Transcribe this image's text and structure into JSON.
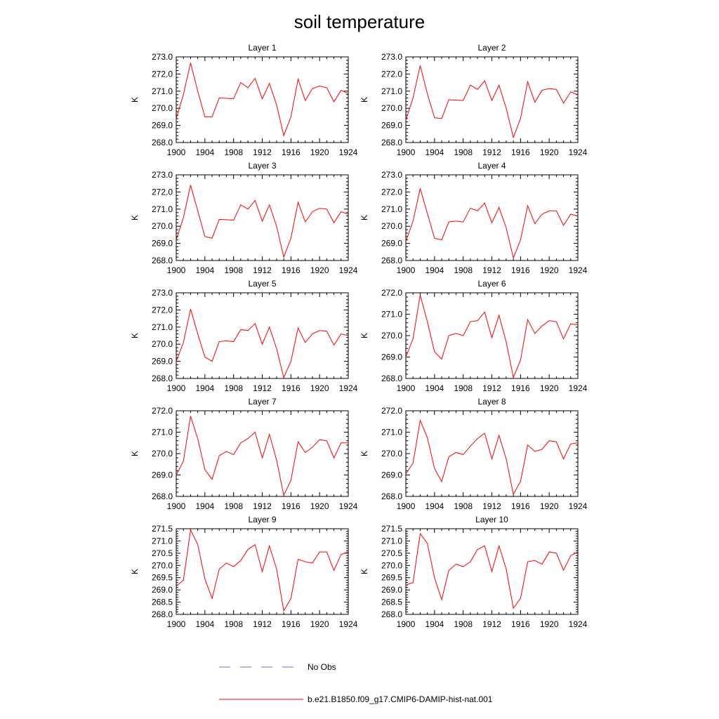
{
  "title": "soil temperature",
  "legend": [
    {
      "label": "No Obs",
      "color": "#6b6bd6",
      "style": "dashed"
    },
    {
      "label": "b.e21.B1850.f09_g17.CMIP6-DAMIP-hist-nat.001",
      "color": "#ff0000",
      "style": "solid"
    }
  ],
  "chart_data": [
    {
      "type": "line",
      "title": "Layer 1",
      "ylabel": "K",
      "xlim": [
        1900,
        1924
      ],
      "ylim": [
        268,
        273
      ],
      "xticks": [
        "1900",
        "1904",
        "1908",
        "1912",
        "1916",
        "1920",
        "1924"
      ],
      "yticks": [
        "268.0",
        "269.0",
        "270.0",
        "271.0",
        "272.0",
        "273.0"
      ],
      "x": [
        1900,
        1901,
        1902,
        1903,
        1904,
        1905,
        1906,
        1907,
        1908,
        1909,
        1910,
        1911,
        1912,
        1913,
        1914,
        1915,
        1916,
        1917,
        1918,
        1919,
        1920,
        1921,
        1922,
        1923,
        1924
      ],
      "series": [
        {
          "color": "#ff0000",
          "values": [
            269.4,
            270.8,
            272.65,
            271.0,
            269.5,
            269.5,
            270.6,
            270.58,
            270.56,
            271.5,
            271.2,
            271.75,
            270.55,
            271.45,
            270.2,
            268.4,
            269.5,
            271.7,
            270.45,
            271.15,
            271.3,
            271.2,
            270.38,
            271.05,
            270.85
          ]
        }
      ]
    },
    {
      "type": "line",
      "title": "Layer 2",
      "ylabel": "K",
      "xlim": [
        1900,
        1924
      ],
      "ylim": [
        268,
        273
      ],
      "xticks": [
        "1900",
        "1904",
        "1908",
        "1912",
        "1916",
        "1920",
        "1924"
      ],
      "yticks": [
        "268.0",
        "269.0",
        "270.0",
        "271.0",
        "272.0",
        "273.0"
      ],
      "x": [
        1900,
        1901,
        1902,
        1903,
        1904,
        1905,
        1906,
        1907,
        1908,
        1909,
        1910,
        1911,
        1912,
        1913,
        1914,
        1915,
        1916,
        1917,
        1918,
        1919,
        1920,
        1921,
        1922,
        1923,
        1924
      ],
      "series": [
        {
          "color": "#ff0000",
          "values": [
            269.3,
            270.6,
            272.5,
            270.85,
            269.45,
            269.4,
            270.5,
            270.48,
            270.45,
            271.35,
            271.1,
            271.6,
            270.45,
            271.35,
            270.0,
            268.3,
            269.4,
            271.55,
            270.35,
            271.05,
            271.15,
            271.1,
            270.3,
            270.95,
            270.8
          ]
        }
      ]
    },
    {
      "type": "line",
      "title": "Layer 3",
      "ylabel": "K",
      "xlim": [
        1900,
        1924
      ],
      "ylim": [
        268,
        273
      ],
      "xticks": [
        "1900",
        "1904",
        "1908",
        "1912",
        "1916",
        "1920",
        "1924"
      ],
      "yticks": [
        "268.0",
        "269.0",
        "270.0",
        "271.0",
        "272.0",
        "273.0"
      ],
      "x": [
        1900,
        1901,
        1902,
        1903,
        1904,
        1905,
        1906,
        1907,
        1908,
        1909,
        1910,
        1911,
        1912,
        1913,
        1914,
        1915,
        1916,
        1917,
        1918,
        1919,
        1920,
        1921,
        1922,
        1923,
        1924
      ],
      "series": [
        {
          "color": "#ff0000",
          "values": [
            269.2,
            270.5,
            272.4,
            270.9,
            269.4,
            269.3,
            270.4,
            270.38,
            270.35,
            271.25,
            271.0,
            271.5,
            270.3,
            271.25,
            270.0,
            268.2,
            269.3,
            271.4,
            270.25,
            270.85,
            271.05,
            271.0,
            270.2,
            270.85,
            270.7
          ]
        }
      ]
    },
    {
      "type": "line",
      "title": "Layer 4",
      "ylabel": "K",
      "xlim": [
        1900,
        1924
      ],
      "ylim": [
        268,
        273
      ],
      "xticks": [
        "1900",
        "1904",
        "1908",
        "1912",
        "1916",
        "1920",
        "1924"
      ],
      "yticks": [
        "268.0",
        "269.0",
        "270.0",
        "271.0",
        "272.0",
        "273.0"
      ],
      "x": [
        1900,
        1901,
        1902,
        1903,
        1904,
        1905,
        1906,
        1907,
        1908,
        1909,
        1910,
        1911,
        1912,
        1913,
        1914,
        1915,
        1916,
        1917,
        1918,
        1919,
        1920,
        1921,
        1922,
        1923,
        1924
      ],
      "series": [
        {
          "color": "#ff0000",
          "values": [
            269.1,
            270.3,
            272.2,
            270.75,
            269.3,
            269.2,
            270.25,
            270.3,
            270.25,
            271.05,
            270.9,
            271.35,
            270.2,
            271.1,
            269.9,
            268.15,
            269.2,
            271.2,
            270.15,
            270.7,
            270.9,
            270.9,
            270.05,
            270.7,
            270.6
          ]
        }
      ]
    },
    {
      "type": "line",
      "title": "Layer 5",
      "ylabel": "K",
      "xlim": [
        1900,
        1924
      ],
      "ylim": [
        268,
        273
      ],
      "xticks": [
        "1900",
        "1904",
        "1908",
        "1912",
        "1916",
        "1920",
        "1924"
      ],
      "yticks": [
        "268.0",
        "269.0",
        "270.0",
        "271.0",
        "272.0",
        "273.0"
      ],
      "x": [
        1900,
        1901,
        1902,
        1903,
        1904,
        1905,
        1906,
        1907,
        1908,
        1909,
        1910,
        1911,
        1912,
        1913,
        1914,
        1915,
        1916,
        1917,
        1918,
        1919,
        1920,
        1921,
        1922,
        1923,
        1924
      ],
      "series": [
        {
          "color": "#ff0000",
          "values": [
            269.0,
            270.1,
            272.05,
            270.6,
            269.25,
            269.0,
            270.15,
            270.2,
            270.15,
            270.85,
            270.8,
            271.2,
            270.0,
            271.0,
            269.75,
            268.05,
            269.0,
            270.95,
            270.1,
            270.6,
            270.8,
            270.75,
            269.95,
            270.6,
            270.5
          ]
        }
      ]
    },
    {
      "type": "line",
      "title": "Layer 6",
      "ylabel": "K",
      "xlim": [
        1900,
        1924
      ],
      "ylim": [
        268,
        272
      ],
      "xticks": [
        "1900",
        "1904",
        "1908",
        "1912",
        "1916",
        "1920",
        "1924"
      ],
      "yticks": [
        "268.0",
        "269.0",
        "270.0",
        "271.0",
        "272.0"
      ],
      "x": [
        1900,
        1901,
        1902,
        1903,
        1904,
        1905,
        1906,
        1907,
        1908,
        1909,
        1910,
        1911,
        1912,
        1913,
        1914,
        1915,
        1916,
        1917,
        1918,
        1919,
        1920,
        1921,
        1922,
        1923,
        1924
      ],
      "series": [
        {
          "color": "#ff0000",
          "values": [
            269.0,
            269.85,
            271.9,
            270.65,
            269.25,
            268.9,
            270.0,
            270.1,
            270.0,
            270.65,
            270.7,
            271.1,
            269.9,
            270.95,
            269.7,
            268.05,
            268.85,
            270.75,
            270.1,
            270.45,
            270.7,
            270.65,
            269.85,
            270.55,
            270.5
          ]
        }
      ]
    },
    {
      "type": "line",
      "title": "Layer 7",
      "ylabel": "K",
      "xlim": [
        1900,
        1924
      ],
      "ylim": [
        268,
        272
      ],
      "xticks": [
        "1900",
        "1904",
        "1908",
        "1912",
        "1916",
        "1920",
        "1924"
      ],
      "yticks": [
        "268.0",
        "269.0",
        "270.0",
        "271.0",
        "272.0"
      ],
      "x": [
        1900,
        1901,
        1902,
        1903,
        1904,
        1905,
        1906,
        1907,
        1908,
        1909,
        1910,
        1911,
        1912,
        1913,
        1914,
        1915,
        1916,
        1917,
        1918,
        1919,
        1920,
        1921,
        1922,
        1923,
        1924
      ],
      "series": [
        {
          "color": "#ff0000",
          "values": [
            269.0,
            269.65,
            271.75,
            270.7,
            269.25,
            268.8,
            269.9,
            270.1,
            269.95,
            270.5,
            270.7,
            271.0,
            269.8,
            270.9,
            269.7,
            268.05,
            268.75,
            270.55,
            270.05,
            270.3,
            270.65,
            270.6,
            269.8,
            270.5,
            270.5
          ]
        }
      ]
    },
    {
      "type": "line",
      "title": "Layer 8",
      "ylabel": "K",
      "xlim": [
        1900,
        1924
      ],
      "ylim": [
        268,
        272
      ],
      "xticks": [
        "1900",
        "1904",
        "1908",
        "1912",
        "1916",
        "1920",
        "1924"
      ],
      "yticks": [
        "268.0",
        "269.0",
        "270.0",
        "271.0",
        "272.0"
      ],
      "x": [
        1900,
        1901,
        1902,
        1903,
        1904,
        1905,
        1906,
        1907,
        1908,
        1909,
        1910,
        1911,
        1912,
        1913,
        1914,
        1915,
        1916,
        1917,
        1918,
        1919,
        1920,
        1921,
        1922,
        1923,
        1924
      ],
      "series": [
        {
          "color": "#ff0000",
          "values": [
            269.05,
            269.55,
            271.55,
            270.75,
            269.3,
            268.7,
            269.85,
            270.05,
            269.95,
            270.35,
            270.7,
            270.95,
            269.75,
            270.85,
            269.75,
            268.1,
            268.7,
            270.4,
            270.1,
            270.2,
            270.6,
            270.55,
            269.75,
            270.45,
            270.5
          ]
        }
      ]
    },
    {
      "type": "line",
      "title": "Layer 9",
      "ylabel": "K",
      "xlim": [
        1900,
        1924
      ],
      "ylim": [
        268,
        271.5
      ],
      "xticks": [
        "1900",
        "1904",
        "1908",
        "1912",
        "1916",
        "1920",
        "1924"
      ],
      "yticks": [
        "268.0",
        "268.5",
        "269.0",
        "269.5",
        "270.0",
        "270.5",
        "271.0",
        "271.5"
      ],
      "x": [
        1900,
        1901,
        1902,
        1903,
        1904,
        1905,
        1906,
        1907,
        1908,
        1909,
        1910,
        1911,
        1912,
        1913,
        1914,
        1915,
        1916,
        1917,
        1918,
        1919,
        1920,
        1921,
        1922,
        1923,
        1924
      ],
      "series": [
        {
          "color": "#ff0000",
          "values": [
            269.15,
            269.4,
            271.45,
            270.85,
            269.45,
            268.65,
            269.85,
            270.1,
            269.95,
            270.2,
            270.65,
            270.85,
            269.75,
            270.8,
            269.85,
            268.15,
            268.65,
            270.25,
            270.15,
            270.1,
            270.55,
            270.55,
            269.8,
            270.45,
            270.55
          ]
        }
      ]
    },
    {
      "type": "line",
      "title": "Layer 10",
      "ylabel": "K",
      "xlim": [
        1900,
        1924
      ],
      "ylim": [
        268,
        271.5
      ],
      "xticks": [
        "1900",
        "1904",
        "1908",
        "1912",
        "1916",
        "1920",
        "1924"
      ],
      "yticks": [
        "268.0",
        "268.5",
        "269.0",
        "269.5",
        "270.0",
        "270.5",
        "271.0",
        "271.5"
      ],
      "x": [
        1900,
        1901,
        1902,
        1903,
        1904,
        1905,
        1906,
        1907,
        1908,
        1909,
        1910,
        1911,
        1912,
        1913,
        1914,
        1915,
        1916,
        1917,
        1918,
        1919,
        1920,
        1921,
        1922,
        1923,
        1924
      ],
      "series": [
        {
          "color": "#ff0000",
          "values": [
            269.2,
            269.3,
            271.3,
            270.9,
            269.5,
            268.6,
            269.8,
            270.05,
            269.95,
            270.15,
            270.65,
            270.8,
            269.75,
            270.8,
            269.85,
            268.25,
            268.65,
            270.15,
            270.2,
            270.05,
            270.55,
            270.5,
            269.8,
            270.4,
            270.55
          ]
        }
      ]
    }
  ]
}
